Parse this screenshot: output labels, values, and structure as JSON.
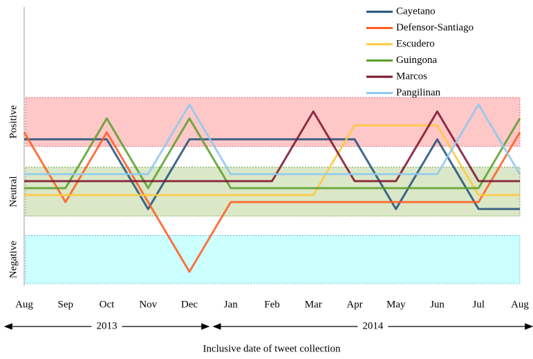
{
  "chart_data": {
    "type": "line",
    "x_label": "Inclusive date of tweet collection",
    "categories": [
      "Aug",
      "Sep",
      "Oct",
      "Nov",
      "Dec",
      "Jan",
      "Feb",
      "Mar",
      "Apr",
      "May",
      "Jun",
      "Jul",
      "Aug"
    ],
    "ylim": [
      0,
      40
    ],
    "bands": [
      {
        "label": "Positive",
        "range": [
          20,
          27
        ],
        "color": "#ffc8c8",
        "border": "#e06060"
      },
      {
        "label": "Neutral",
        "range": [
          10,
          17
        ],
        "color": "#dbe8c8",
        "border": "#6aa040"
      },
      {
        "label": "Negative",
        "range": [
          0.3,
          7.2
        ],
        "color": "#ccffff",
        "border": "#60c0e0"
      }
    ],
    "annotations": [
      "2013",
      "2014"
    ],
    "series": [
      {
        "name": "Cayetano",
        "color": "#1f4e79",
        "values": [
          21,
          21,
          21,
          11,
          21,
          21,
          21,
          21,
          21,
          11,
          21,
          11,
          11
        ]
      },
      {
        "name": "Defensor-Santiago",
        "color": "#ff5a1f",
        "values": [
          22,
          12,
          22,
          12,
          2,
          12,
          12,
          12,
          12,
          12,
          12,
          12,
          22
        ]
      },
      {
        "name": "Escudero",
        "color": "#ffc83d",
        "values": [
          13,
          13,
          13,
          13,
          13,
          13,
          13,
          13,
          23,
          23,
          23,
          13,
          13
        ]
      },
      {
        "name": "Guingona",
        "color": "#5a9e2a",
        "values": [
          14,
          14,
          24,
          14,
          24,
          14,
          14,
          14,
          14,
          14,
          14,
          14,
          24
        ]
      },
      {
        "name": "Marcos",
        "color": "#7b0f2a",
        "values": [
          15,
          15,
          15,
          15,
          15,
          15,
          15,
          25,
          15,
          15,
          25,
          15,
          15
        ]
      },
      {
        "name": "Pangilinan",
        "color": "#8fc8ee",
        "values": [
          16,
          16,
          16,
          16,
          26,
          16,
          16,
          16,
          16,
          16,
          16,
          26,
          16
        ]
      }
    ]
  }
}
